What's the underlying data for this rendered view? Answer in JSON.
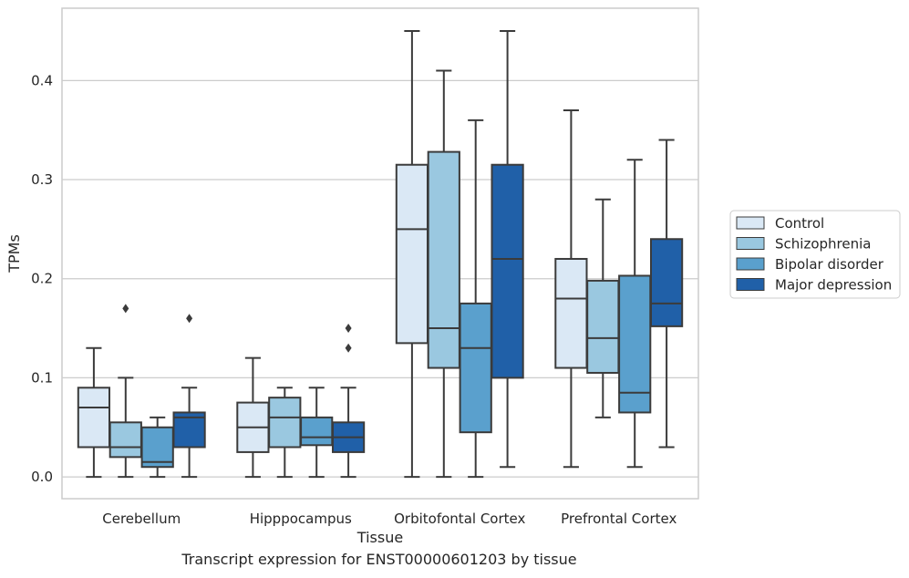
{
  "caption": "Transcript expression for ENST00000601203 by tissue",
  "chart_data": {
    "type": "box",
    "xlabel": "Tissue",
    "ylabel": "TPMs",
    "ylim": [
      -0.022,
      0.473
    ],
    "yticks": [
      0.0,
      0.1,
      0.2,
      0.3,
      0.4
    ],
    "ytick_labels": [
      "0.0",
      "0.1",
      "0.2",
      "0.3",
      "0.4"
    ],
    "grid": true,
    "legend_position": "right",
    "categories": [
      "Cerebellum",
      "Hipppocampus",
      "Orbitofontal Cortex",
      "Prefrontal Cortex"
    ],
    "series": [
      {
        "name": "Control",
        "color": "#dae8f5",
        "boxes": [
          {
            "whislo": 0.0,
            "q1": 0.03,
            "med": 0.07,
            "q3": 0.09,
            "whishi": 0.13,
            "fliers": []
          },
          {
            "whislo": 0.0,
            "q1": 0.025,
            "med": 0.05,
            "q3": 0.075,
            "whishi": 0.12,
            "fliers": []
          },
          {
            "whislo": 0.0,
            "q1": 0.135,
            "med": 0.25,
            "q3": 0.315,
            "whishi": 0.45,
            "fliers": []
          },
          {
            "whislo": 0.01,
            "q1": 0.11,
            "med": 0.18,
            "q3": 0.22,
            "whishi": 0.37,
            "fliers": []
          }
        ]
      },
      {
        "name": "Schizophrenia",
        "color": "#9ac8e0",
        "boxes": [
          {
            "whislo": 0.0,
            "q1": 0.02,
            "med": 0.03,
            "q3": 0.055,
            "whishi": 0.1,
            "fliers": [
              0.17
            ]
          },
          {
            "whislo": 0.0,
            "q1": 0.03,
            "med": 0.06,
            "q3": 0.08,
            "whishi": 0.09,
            "fliers": []
          },
          {
            "whislo": 0.0,
            "q1": 0.11,
            "med": 0.15,
            "q3": 0.328,
            "whishi": 0.41,
            "fliers": []
          },
          {
            "whislo": 0.06,
            "q1": 0.105,
            "med": 0.14,
            "q3": 0.198,
            "whishi": 0.28,
            "fliers": []
          }
        ]
      },
      {
        "name": "Bipolar disorder",
        "color": "#5aa0cd",
        "boxes": [
          {
            "whislo": 0.0,
            "q1": 0.01,
            "med": 0.015,
            "q3": 0.05,
            "whishi": 0.06,
            "fliers": []
          },
          {
            "whislo": 0.0,
            "q1": 0.032,
            "med": 0.04,
            "q3": 0.06,
            "whishi": 0.09,
            "fliers": []
          },
          {
            "whislo": 0.0,
            "q1": 0.045,
            "med": 0.13,
            "q3": 0.175,
            "whishi": 0.36,
            "fliers": []
          },
          {
            "whislo": 0.01,
            "q1": 0.065,
            "med": 0.085,
            "q3": 0.203,
            "whishi": 0.32,
            "fliers": []
          }
        ]
      },
      {
        "name": "Major depression",
        "color": "#2060a8",
        "boxes": [
          {
            "whislo": 0.0,
            "q1": 0.03,
            "med": 0.06,
            "q3": 0.065,
            "whishi": 0.09,
            "fliers": [
              0.16
            ]
          },
          {
            "whislo": 0.0,
            "q1": 0.025,
            "med": 0.04,
            "q3": 0.055,
            "whishi": 0.09,
            "fliers": [
              0.13,
              0.15
            ]
          },
          {
            "whislo": 0.01,
            "q1": 0.1,
            "med": 0.22,
            "q3": 0.315,
            "whishi": 0.45,
            "fliers": []
          },
          {
            "whislo": 0.03,
            "q1": 0.152,
            "med": 0.175,
            "q3": 0.24,
            "whishi": 0.34,
            "fliers": []
          }
        ]
      }
    ]
  }
}
